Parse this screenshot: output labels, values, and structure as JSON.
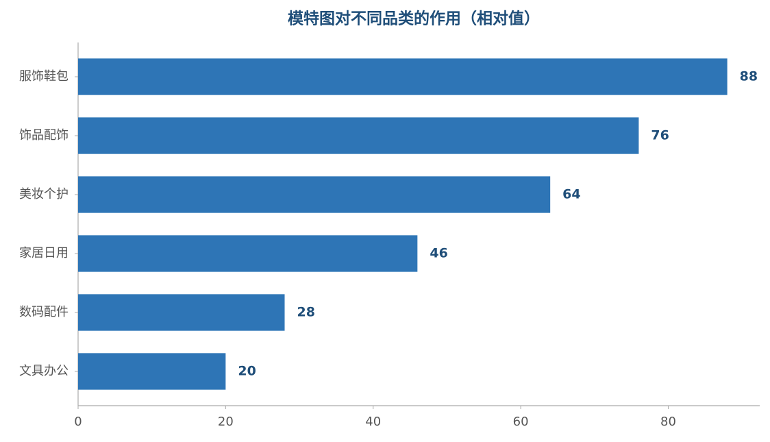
{
  "chart_data": {
    "type": "hbar",
    "title": "模特图对不同品类的作用（相对值）",
    "categories": [
      "服饰鞋包",
      "饰品配饰",
      "美妆个护",
      "家居日用",
      "数码配件",
      "文具办公"
    ],
    "values": [
      88,
      76,
      64,
      46,
      28,
      20
    ],
    "color": "#2e75b6",
    "xlim": [
      0,
      92.4
    ],
    "xticks": [
      0,
      20,
      40,
      60,
      80
    ],
    "grid": false
  }
}
